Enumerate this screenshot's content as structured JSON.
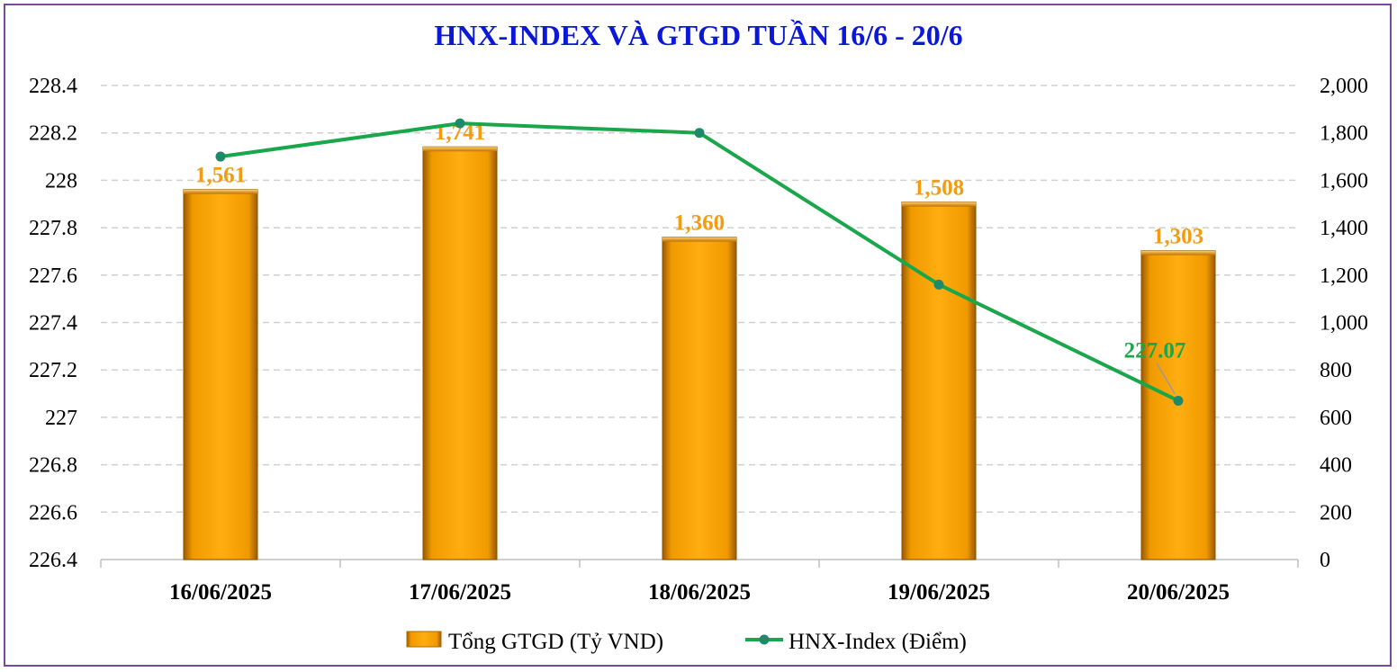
{
  "chart_data": {
    "type": "bar+line",
    "title": "HNX-INDEX VÀ GTGD TUẦN 16/6 - 20/6",
    "categories": [
      "16/06/2025",
      "17/06/2025",
      "18/06/2025",
      "19/06/2025",
      "20/06/2025"
    ],
    "series": [
      {
        "name": "Tổng GTGD (Tỷ VND)",
        "type": "bar",
        "axis": "right",
        "values": [
          1561,
          1741,
          1360,
          1508,
          1303
        ],
        "labels": [
          "1,561",
          "1,741",
          "1,360",
          "1,508",
          "1,303"
        ],
        "color": "#f5a000"
      },
      {
        "name": "HNX-Index (Điểm)",
        "type": "line",
        "axis": "left",
        "values": [
          228.1,
          228.24,
          228.2,
          227.56,
          227.07
        ],
        "labels": [
          "",
          "",
          "",
          "",
          "227.07"
        ],
        "color": "#1aa64a"
      }
    ],
    "left_axis": {
      "ylim": [
        226.4,
        228.4
      ],
      "ticks": [
        "228.4",
        "228.2",
        "228",
        "227.8",
        "227.6",
        "227.4",
        "227.2",
        "227",
        "226.8",
        "226.6",
        "226.4"
      ]
    },
    "right_axis": {
      "ylim": [
        0,
        2000
      ],
      "ticks": [
        "2,000",
        "1,800",
        "1,600",
        "1,400",
        "1,200",
        "1,000",
        "800",
        "600",
        "400",
        "200",
        "0"
      ]
    },
    "grid": true,
    "legend_position": "bottom"
  }
}
